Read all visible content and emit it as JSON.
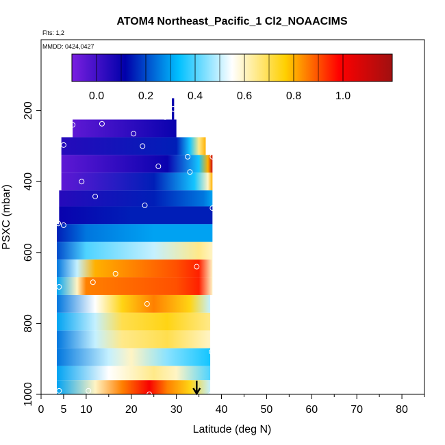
{
  "chart_data": {
    "type": "heatmap",
    "title": "ATOM4 Northeast_Pacific_1 Cl2_NOAACIMS",
    "flights_label": "Flts: 1,2",
    "dates_label": "MMDD: 0424,0427",
    "xlabel": "Latitude (deg N)",
    "ylabel": "PSXC (mbar)",
    "xlim": [
      0,
      85
    ],
    "ylim": [
      1000,
      0
    ],
    "x_ticks": [
      0,
      5,
      10,
      20,
      30,
      40,
      50,
      60,
      70,
      80
    ],
    "x_tick_labels": [
      "0",
      "5",
      "10",
      "20",
      "30",
      "40",
      "50",
      "60",
      "70",
      "80"
    ],
    "y_ticks": [
      200,
      400,
      600,
      800,
      1000
    ],
    "y_tick_labels": [
      "200",
      "400",
      "600",
      "800",
      "1000"
    ],
    "colorbar": {
      "range": [
        -0.1,
        1.2
      ],
      "ticks": [
        0.0,
        0.2,
        0.4,
        0.6,
        0.8,
        1.0
      ],
      "tick_labels": [
        "0.0",
        "0.2",
        "0.4",
        "0.6",
        "0.8",
        "1.0"
      ],
      "colors": [
        "#7a1fe0",
        "#0000aa",
        "#00c0ff",
        "#ffffff",
        "#ffd000",
        "#ff0000",
        "#a01010"
      ]
    },
    "rows": [
      {
        "p0": 165,
        "p1": 225,
        "lat0": 29.0,
        "lat1": 29.5,
        "stops": [
          [
            29.0,
            0.1
          ],
          [
            29.5,
            0.1
          ]
        ]
      },
      {
        "p0": 225,
        "p1": 275,
        "lat0": 7.0,
        "lat1": 30.0,
        "stops": [
          [
            7,
            -0.05
          ],
          [
            22,
            0.05
          ],
          [
            30,
            0.1
          ]
        ]
      },
      {
        "p0": 275,
        "p1": 325,
        "lat0": 4.5,
        "lat1": 36.5,
        "stops": [
          [
            4.5,
            0.05
          ],
          [
            30,
            0.15
          ],
          [
            33,
            0.35
          ],
          [
            35,
            0.65
          ],
          [
            36.5,
            0.8
          ]
        ]
      },
      {
        "p0": 325,
        "p1": 375,
        "lat0": 4.5,
        "lat1": 38.0,
        "stops": [
          [
            4.5,
            -0.05
          ],
          [
            28,
            0.1
          ],
          [
            35,
            0.35
          ],
          [
            37,
            0.8
          ],
          [
            38,
            1.1
          ]
        ]
      },
      {
        "p0": 375,
        "p1": 425,
        "lat0": 4.5,
        "lat1": 38.0,
        "stops": [
          [
            4.5,
            -0.05
          ],
          [
            25,
            0.15
          ],
          [
            34,
            0.35
          ],
          [
            37,
            0.6
          ],
          [
            38,
            0.8
          ]
        ]
      },
      {
        "p0": 425,
        "p1": 470,
        "lat0": 4.0,
        "lat1": 38.0,
        "stops": [
          [
            4,
            0.05
          ],
          [
            25,
            0.15
          ],
          [
            36,
            0.25
          ],
          [
            38,
            0.3
          ]
        ]
      },
      {
        "p0": 470,
        "p1": 520,
        "lat0": 4.0,
        "lat1": 38.0,
        "stops": [
          [
            4,
            0.1
          ],
          [
            20,
            0.15
          ],
          [
            30,
            0.15
          ],
          [
            38,
            0.15
          ]
        ]
      },
      {
        "p0": 520,
        "p1": 570,
        "lat0": 3.5,
        "lat1": 38.0,
        "stops": [
          [
            3.5,
            0.15
          ],
          [
            10,
            0.25
          ],
          [
            25,
            0.3
          ],
          [
            38,
            0.3
          ]
        ]
      },
      {
        "p0": 570,
        "p1": 620,
        "lat0": 3.5,
        "lat1": 38.0,
        "stops": [
          [
            3.5,
            0.2
          ],
          [
            10,
            0.4
          ],
          [
            25,
            0.5
          ],
          [
            35,
            0.65
          ],
          [
            38,
            0.6
          ]
        ]
      },
      {
        "p0": 620,
        "p1": 670,
        "lat0": 3.5,
        "lat1": 38.0,
        "stops": [
          [
            3.5,
            0.25
          ],
          [
            8,
            0.5
          ],
          [
            12,
            0.8
          ],
          [
            30,
            0.9
          ],
          [
            35,
            0.95
          ],
          [
            38,
            0.6
          ]
        ]
      },
      {
        "p0": 670,
        "p1": 720,
        "lat0": 3.5,
        "lat1": 38.0,
        "stops": [
          [
            3.5,
            0.3
          ],
          [
            8,
            0.6
          ],
          [
            10,
            0.85
          ],
          [
            30,
            0.9
          ],
          [
            35,
            0.95
          ],
          [
            38,
            0.6
          ]
        ]
      },
      {
        "p0": 720,
        "p1": 770,
        "lat0": 3.5,
        "lat1": 37.5,
        "stops": [
          [
            3.5,
            0.25
          ],
          [
            12,
            0.55
          ],
          [
            18,
            0.75
          ],
          [
            25,
            0.85
          ],
          [
            33,
            0.75
          ],
          [
            37.5,
            0.5
          ]
        ]
      },
      {
        "p0": 770,
        "p1": 820,
        "lat0": 3.5,
        "lat1": 37.5,
        "stops": [
          [
            3.5,
            0.3
          ],
          [
            12,
            0.5
          ],
          [
            18,
            0.7
          ],
          [
            28,
            0.75
          ],
          [
            37.5,
            0.65
          ]
        ]
      },
      {
        "p0": 820,
        "p1": 870,
        "lat0": 3.5,
        "lat1": 37.5,
        "stops": [
          [
            3.5,
            0.25
          ],
          [
            12,
            0.5
          ],
          [
            18,
            0.65
          ],
          [
            28,
            0.7
          ],
          [
            37.5,
            0.6
          ]
        ]
      },
      {
        "p0": 870,
        "p1": 920,
        "lat0": 3.5,
        "lat1": 37.5,
        "stops": [
          [
            3.5,
            0.25
          ],
          [
            15,
            0.5
          ],
          [
            20,
            0.6
          ],
          [
            28,
            0.45
          ],
          [
            37.5,
            0.35
          ]
        ]
      },
      {
        "p0": 920,
        "p1": 960,
        "lat0": 3.5,
        "lat1": 37.5,
        "stops": [
          [
            3.5,
            0.3
          ],
          [
            15,
            0.55
          ],
          [
            25,
            0.65
          ],
          [
            30,
            0.6
          ],
          [
            37.5,
            0.4
          ]
        ]
      },
      {
        "p0": 960,
        "p1": 1005,
        "lat0": 3.5,
        "lat1": 37.5,
        "stops": [
          [
            3.5,
            0.3
          ],
          [
            12,
            0.6
          ],
          [
            18,
            0.85
          ],
          [
            24,
            1.0
          ],
          [
            28,
            0.85
          ],
          [
            33,
            0.75
          ],
          [
            37.5,
            0.5
          ]
        ]
      }
    ],
    "sample_points": [
      {
        "lat": 29.3,
        "p": 195
      },
      {
        "lat": 7.0,
        "p": 240
      },
      {
        "lat": 13.5,
        "p": 237
      },
      {
        "lat": 27.5,
        "p": 218
      },
      {
        "lat": 20.5,
        "p": 265
      },
      {
        "lat": 5.0,
        "p": 297
      },
      {
        "lat": 22.5,
        "p": 300
      },
      {
        "lat": 32.5,
        "p": 330
      },
      {
        "lat": 38.0,
        "p": 330
      },
      {
        "lat": 26.0,
        "p": 357
      },
      {
        "lat": 33.0,
        "p": 373
      },
      {
        "lat": 9.0,
        "p": 400
      },
      {
        "lat": 12.0,
        "p": 442
      },
      {
        "lat": 23.0,
        "p": 467
      },
      {
        "lat": 38.0,
        "p": 475
      },
      {
        "lat": 3.8,
        "p": 518
      },
      {
        "lat": 5.0,
        "p": 523
      },
      {
        "lat": 16.5,
        "p": 660
      },
      {
        "lat": 4.0,
        "p": 697
      },
      {
        "lat": 11.5,
        "p": 684
      },
      {
        "lat": 34.5,
        "p": 640
      },
      {
        "lat": 23.5,
        "p": 745
      },
      {
        "lat": 37.8,
        "p": 880
      },
      {
        "lat": 4.0,
        "p": 990
      },
      {
        "lat": 10.5,
        "p": 990
      },
      {
        "lat": 24.0,
        "p": 1000
      },
      {
        "lat": 37.7,
        "p": 1000
      }
    ],
    "arrow_lat": 34.5,
    "grid": false
  }
}
